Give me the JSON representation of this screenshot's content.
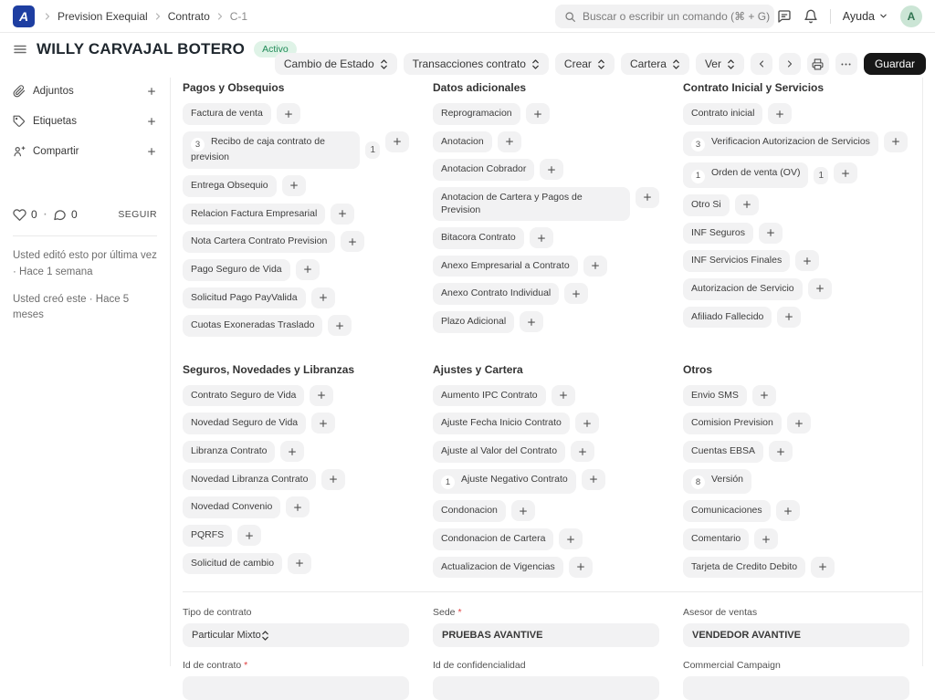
{
  "colors": {
    "brand-blue": "#1e3ea1",
    "status-green-bg": "#dff3e7",
    "status-green-text": "#1f8a57",
    "avatar-bg": "#cbe5d5",
    "avatar-text": "#2f7350",
    "save-bg": "#171717",
    "save-text": "#ffffff",
    "required-red": "#e03e3e"
  },
  "navbar": {
    "logo_letter": "A",
    "breadcrumbs": [
      "Prevision Exequial",
      "Contrato",
      "C-1"
    ],
    "search_placeholder": "Buscar o escribir un comando (⌘ + G)",
    "help_label": "Ayuda",
    "avatar_letter": "A"
  },
  "header": {
    "title": "WILLY CARVAJAL BOTERO",
    "status_badge": "Activo"
  },
  "toolbar": {
    "buttons": [
      {
        "label": "Cambio de Estado",
        "kind": "select",
        "name": "cambio-de-estado-button"
      },
      {
        "label": "Transacciones contrato",
        "kind": "select",
        "name": "transacciones-contrato-button"
      },
      {
        "label": "Crear",
        "kind": "select",
        "name": "crear-button"
      },
      {
        "label": "Cartera",
        "kind": "select",
        "name": "cartera-button"
      },
      {
        "label": "Ver",
        "kind": "select",
        "name": "ver-button"
      },
      {
        "kind": "icon",
        "icon": "chevron-left",
        "name": "previous-document-button"
      },
      {
        "kind": "icon",
        "icon": "chevron-right",
        "name": "next-document-button"
      },
      {
        "kind": "icon",
        "icon": "printer",
        "name": "print-button"
      },
      {
        "kind": "icon",
        "icon": "ellipsis",
        "name": "more-menu-button"
      },
      {
        "label": "Guardar",
        "kind": "primary",
        "name": "guardar-button"
      }
    ]
  },
  "sidebar": {
    "actions": [
      {
        "label": "Adjuntos",
        "icon": "paperclip"
      },
      {
        "label": "Etiquetas",
        "icon": "tag"
      },
      {
        "label": "Compartir",
        "icon": "share"
      }
    ],
    "likes": "0",
    "comments": "0",
    "separator": "·",
    "follow_label": "SEGUIR",
    "meta": [
      "Usted editó esto por última vez · Hace 1 semana",
      "Usted creó este · Hace 5 meses"
    ]
  },
  "sections": [
    {
      "title": "Pagos y Obsequios",
      "items": [
        {
          "label": "Factura de venta",
          "plus": true
        },
        {
          "label": "Recibo de caja contrato de prevision",
          "count": "3",
          "external_count": "1",
          "plus": true,
          "wide": true
        },
        {
          "label": "Entrega Obsequio",
          "plus": true
        },
        {
          "label": "Relacion Factura Empresarial",
          "plus": true
        },
        {
          "label": "Nota Cartera Contrato Prevision",
          "plus": true
        },
        {
          "label": "Pago Seguro de Vida",
          "plus": true
        },
        {
          "label": "Solicitud Pago PayValida",
          "plus": true
        },
        {
          "label": "Cuotas Exoneradas Traslado",
          "plus": true
        }
      ]
    },
    {
      "title": "Datos adicionales",
      "items": [
        {
          "label": "Reprogramacion",
          "plus": true
        },
        {
          "label": "Anotacion",
          "plus": true
        },
        {
          "label": "Anotacion Cobrador",
          "plus": true
        },
        {
          "label": "Anotacion de Cartera y Pagos de Prevision",
          "plus": true,
          "wide": true
        },
        {
          "label": "Bitacora Contrato",
          "plus": true
        },
        {
          "label": "Anexo Empresarial a Contrato",
          "plus": true
        },
        {
          "label": "Anexo Contrato Individual",
          "plus": true
        },
        {
          "label": "Plazo Adicional",
          "plus": true
        }
      ]
    },
    {
      "title": "Contrato Inicial y Servicios",
      "items": [
        {
          "label": "Contrato inicial",
          "plus": true
        },
        {
          "label": "Verificacion Autorizacion de Servicios",
          "count": "3",
          "plus": true
        },
        {
          "label": "Orden de venta (OV)",
          "count": "1",
          "external_count": "1",
          "plus": true
        },
        {
          "label": "Otro Si",
          "plus": true
        },
        {
          "label": "INF Seguros",
          "plus": true
        },
        {
          "label": "INF Servicios Finales",
          "plus": true
        },
        {
          "label": "Autorizacion de Servicio",
          "plus": true
        },
        {
          "label": "Afiliado Fallecido",
          "plus": true
        }
      ]
    },
    {
      "title": "Seguros, Novedades y Libranzas",
      "items": [
        {
          "label": "Contrato Seguro de Vida",
          "plus": true
        },
        {
          "label": "Novedad Seguro de Vida",
          "plus": true
        },
        {
          "label": "Libranza Contrato",
          "plus": true
        },
        {
          "label": "Novedad Libranza Contrato",
          "plus": true
        },
        {
          "label": "Novedad Convenio",
          "plus": true
        },
        {
          "label": "PQRFS",
          "plus": true
        },
        {
          "label": "Solicitud de cambio",
          "plus": true
        }
      ]
    },
    {
      "title": "Ajustes y Cartera",
      "items": [
        {
          "label": "Aumento IPC Contrato",
          "plus": true
        },
        {
          "label": "Ajuste Fecha Inicio Contrato",
          "plus": true
        },
        {
          "label": "Ajuste al Valor del Contrato",
          "plus": true
        },
        {
          "label": "Ajuste Negativo Contrato",
          "count": "1",
          "plus": true
        },
        {
          "label": "Condonacion",
          "plus": true
        },
        {
          "label": "Condonacion de Cartera",
          "plus": true
        },
        {
          "label": "Actualizacion de Vigencias",
          "plus": true
        }
      ]
    },
    {
      "title": "Otros",
      "items": [
        {
          "label": "Envio SMS",
          "plus": true
        },
        {
          "label": "Comision Prevision",
          "plus": true
        },
        {
          "label": "Cuentas EBSA",
          "plus": true
        },
        {
          "label": "Versión",
          "count": "8",
          "plus": false
        },
        {
          "label": "Comunicaciones",
          "plus": true
        },
        {
          "label": "Comentario",
          "plus": true
        },
        {
          "label": "Tarjeta de Credito Debito",
          "plus": true
        }
      ]
    }
  ],
  "form": {
    "fields": [
      {
        "label": "Tipo de contrato",
        "value": "Particular Mixto",
        "control": "select",
        "required": false,
        "name": "tipo-de-contrato"
      },
      {
        "label": "Sede",
        "value": "PRUEBAS AVANTIVE",
        "control": "link",
        "required": true,
        "name": "sede"
      },
      {
        "label": "Asesor de ventas",
        "value": "VENDEDOR AVANTIVE",
        "control": "link",
        "required": false,
        "name": "asesor-de-ventas"
      },
      {
        "label": "Id de contrato",
        "value": "",
        "control": "data",
        "required": true,
        "name": "id-de-contrato"
      },
      {
        "label": "Id de confidencialidad",
        "value": "",
        "control": "data",
        "required": false,
        "name": "id-de-confidencialidad"
      },
      {
        "label": "Commercial Campaign",
        "value": "",
        "control": "link",
        "required": false,
        "name": "commercial-campaign"
      }
    ]
  }
}
